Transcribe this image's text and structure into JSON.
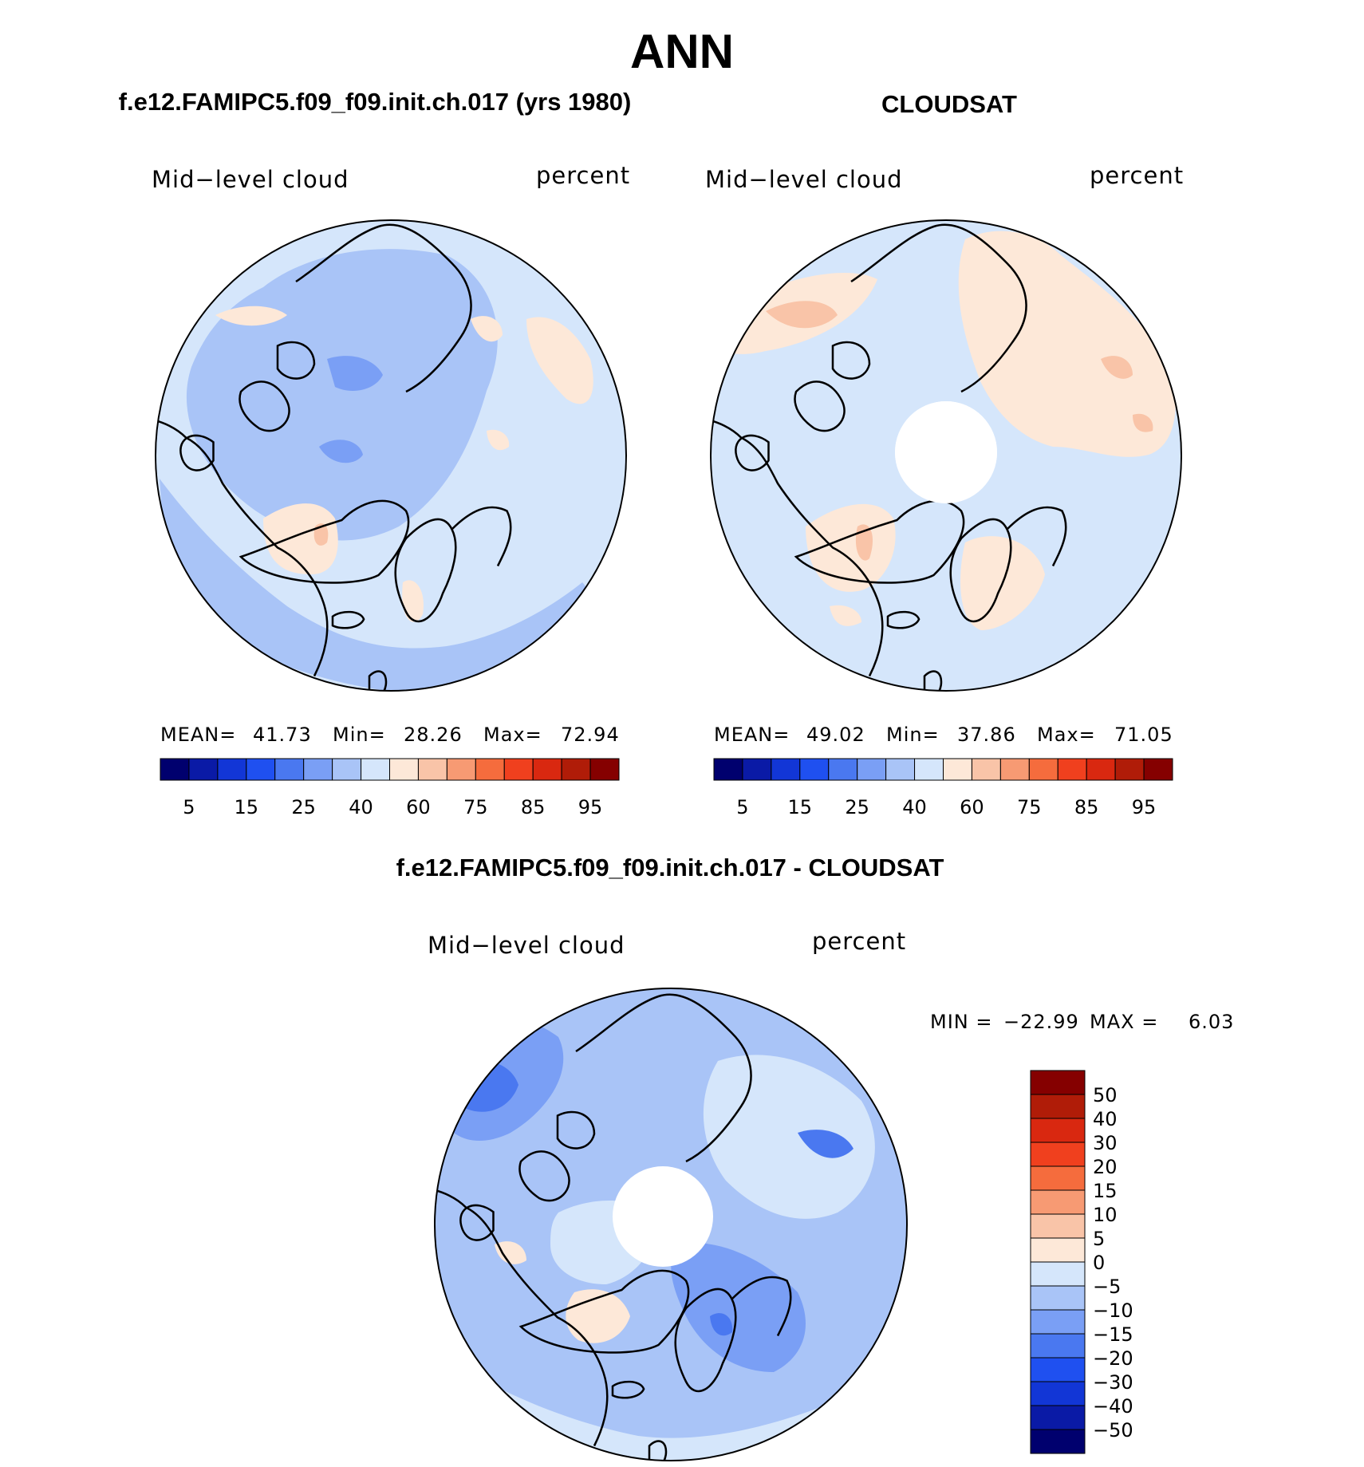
{
  "title": "ANN",
  "panels": [
    {
      "title": "f.e12.FAMIPC5.f09_f09.init.ch.017 (yrs 1980)",
      "variable": "Mid−level cloud",
      "units": "percent",
      "mean_label": "MEAN=",
      "mean": "41.73",
      "min_label": "Min=",
      "min": "28.26",
      "max_label": "Max=",
      "max": "72.94"
    },
    {
      "title": "CLOUDSAT",
      "variable": "Mid−level cloud",
      "units": "percent",
      "mean_label": "MEAN=",
      "mean": "49.02",
      "min_label": "Min=",
      "min": "37.86",
      "max_label": "Max=",
      "max": "71.05"
    },
    {
      "title": "f.e12.FAMIPC5.f09_f09.init.ch.017 - CLOUDSAT",
      "variable": "Mid−level cloud",
      "units": "percent",
      "min_label": "MIN =",
      "min": "−22.99",
      "max_label": "MAX =",
      "max": "6.03"
    }
  ],
  "colorbars": {
    "absolute": {
      "colors": [
        "#00006e",
        "#0a1aa6",
        "#1236d6",
        "#1f50f0",
        "#4a78f0",
        "#7a9ff5",
        "#a9c4f7",
        "#d5e6fb",
        "#fde8d8",
        "#f9c4a8",
        "#f79a73",
        "#f56c3d",
        "#f0401e",
        "#d92810",
        "#b01c08",
        "#850000"
      ],
      "labels": [
        "5",
        "15",
        "25",
        "40",
        "60",
        "75",
        "85",
        "95"
      ]
    },
    "difference": {
      "colors": [
        "#850000",
        "#b01c08",
        "#d92810",
        "#f0401e",
        "#f56c3d",
        "#f79a73",
        "#f9c4a8",
        "#fde8d8",
        "#d5e6fb",
        "#a9c4f7",
        "#7a9ff5",
        "#4a78f0",
        "#1f50f0",
        "#1236d6",
        "#0a1aa6",
        "#00006e"
      ],
      "labels": [
        "50",
        "40",
        "30",
        "20",
        "15",
        "10",
        "5",
        "0",
        "−5",
        "−10",
        "−15",
        "−20",
        "−30",
        "−40",
        "−50"
      ]
    }
  },
  "colors": {
    "blue_light": "#d5e6fb",
    "blue_mid": "#a9c4f7",
    "blue_dark": "#7a9ff5",
    "blue_deep": "#4a78f0",
    "orange_light": "#fde8d8",
    "orange_mid": "#f9c4a8",
    "orange_dark": "#f79a73"
  }
}
